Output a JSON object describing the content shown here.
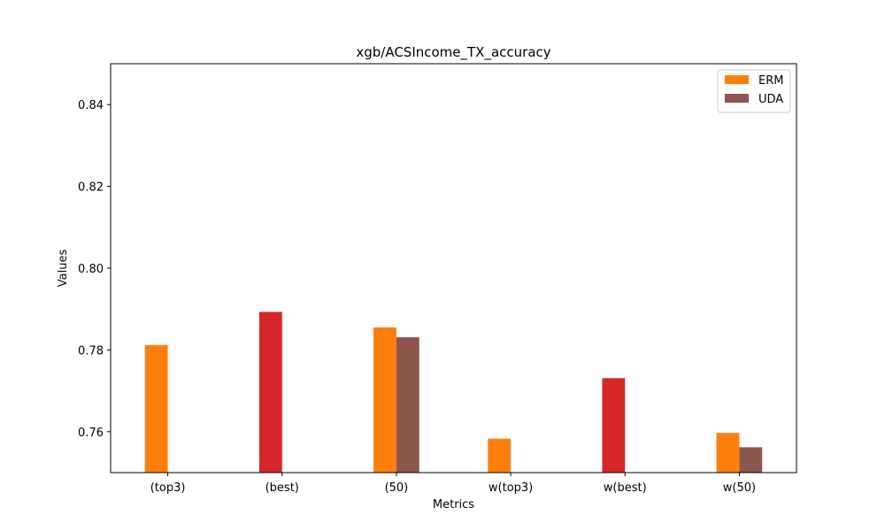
{
  "chart_data": {
    "type": "bar",
    "title": "xgb/ACSIncome_TX_accuracy",
    "xlabel": "Metrics",
    "ylabel": "Values",
    "ylim": [
      0.75,
      0.85
    ],
    "yticks": [
      "0.76",
      "0.78",
      "0.80",
      "0.82",
      "0.84"
    ],
    "categories": [
      "(top3)",
      "(best)",
      "(50)",
      "w(top3)",
      "w(best)",
      "w(50)"
    ],
    "series": [
      {
        "name": "ERM",
        "color": "#ff7f0e",
        "values": [
          0.7812,
          null,
          0.7855,
          0.7583,
          null,
          0.7597
        ]
      },
      {
        "name": "UDA",
        "color": "#8c564b",
        "values": [
          null,
          null,
          0.7831,
          null,
          null,
          0.7562
        ]
      },
      {
        "color": "#d62728",
        "values": [
          null,
          0.7893,
          null,
          null,
          0.7731,
          null
        ]
      }
    ],
    "legend": {
      "position": "top-right",
      "entries": [
        "ERM",
        "UDA"
      ]
    },
    "grid": false
  }
}
